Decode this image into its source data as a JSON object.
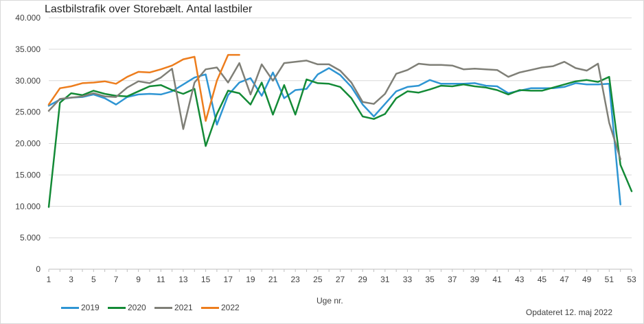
{
  "chart_data": {
    "type": "line",
    "title": "Lastbilstrafik over Storebælt. Antal lastbiler",
    "xlabel": "Uge nr.",
    "ylabel": "",
    "footnote": "Opdateret 12. maj 2022",
    "ylim": [
      0,
      40000
    ],
    "xlim": [
      1,
      53
    ],
    "yticks": [
      "0",
      "5.000",
      "10.000",
      "15.000",
      "20.000",
      "25.000",
      "30.000",
      "35.000",
      "40.000"
    ],
    "ytick_values": [
      0,
      5000,
      10000,
      15000,
      20000,
      25000,
      30000,
      35000,
      40000
    ],
    "xticks": [
      "1",
      "3",
      "5",
      "7",
      "9",
      "11",
      "13",
      "15",
      "17",
      "19",
      "21",
      "23",
      "25",
      "27",
      "29",
      "31",
      "33",
      "35",
      "37",
      "39",
      "41",
      "43",
      "45",
      "47",
      "49",
      "51",
      "53"
    ],
    "xtick_values": [
      1,
      3,
      5,
      7,
      9,
      11,
      13,
      15,
      17,
      19,
      21,
      23,
      25,
      27,
      29,
      31,
      33,
      35,
      37,
      39,
      41,
      43,
      45,
      47,
      49,
      51,
      53
    ],
    "grid": true,
    "legend": "bottom-left",
    "series": [
      {
        "name": "2019",
        "color": "#2e95d3",
        "x": [
          1,
          2,
          3,
          4,
          5,
          6,
          7,
          8,
          9,
          10,
          11,
          12,
          13,
          14,
          15,
          16,
          17,
          18,
          19,
          20,
          21,
          22,
          23,
          24,
          25,
          26,
          27,
          28,
          29,
          30,
          31,
          32,
          33,
          34,
          35,
          36,
          37,
          38,
          39,
          40,
          41,
          42,
          43,
          44,
          45,
          46,
          47,
          48,
          49,
          50,
          51,
          52
        ],
        "y": [
          26000,
          27000,
          27300,
          27400,
          27800,
          27200,
          26200,
          27400,
          27800,
          27900,
          27800,
          28300,
          29400,
          30500,
          31000,
          23000,
          27700,
          29700,
          30400,
          27600,
          31300,
          27200,
          28500,
          28700,
          31000,
          32000,
          30900,
          29000,
          26200,
          24300,
          26300,
          28300,
          29000,
          29200,
          30100,
          29500,
          29500,
          29500,
          29600,
          29200,
          29100,
          28000,
          28400,
          28800,
          28800,
          28800,
          29000,
          29600,
          29400,
          29400,
          29500,
          10300
        ]
      },
      {
        "name": "2020",
        "color": "#138a36",
        "x": [
          1,
          2,
          3,
          4,
          5,
          6,
          7,
          8,
          9,
          10,
          11,
          12,
          13,
          14,
          15,
          16,
          17,
          18,
          19,
          20,
          21,
          22,
          23,
          24,
          25,
          26,
          27,
          28,
          29,
          30,
          31,
          32,
          33,
          34,
          35,
          36,
          37,
          38,
          39,
          40,
          41,
          42,
          43,
          44,
          45,
          46,
          47,
          48,
          49,
          50,
          51,
          52,
          53
        ],
        "y": [
          9900,
          26500,
          28000,
          27700,
          28400,
          27900,
          27600,
          27500,
          28300,
          29100,
          29300,
          28500,
          27900,
          28700,
          19600,
          24700,
          28400,
          28000,
          26200,
          29700,
          24600,
          29300,
          24600,
          30200,
          29600,
          29500,
          29000,
          27200,
          24300,
          23900,
          24700,
          27200,
          28300,
          28100,
          28600,
          29200,
          29100,
          29400,
          29100,
          28900,
          28500,
          27800,
          28500,
          28400,
          28400,
          28900,
          29400,
          29900,
          30100,
          29800,
          30600,
          16600,
          12400
        ]
      },
      {
        "name": "2021",
        "color": "#7f7f77",
        "x": [
          1,
          2,
          3,
          4,
          5,
          6,
          7,
          8,
          9,
          10,
          11,
          12,
          13,
          14,
          15,
          16,
          17,
          18,
          19,
          20,
          21,
          22,
          23,
          24,
          25,
          26,
          27,
          28,
          29,
          30,
          31,
          32,
          33,
          34,
          35,
          36,
          37,
          38,
          39,
          40,
          41,
          42,
          43,
          44,
          45,
          46,
          47,
          48,
          49,
          50,
          51,
          52
        ],
        "y": [
          25200,
          27100,
          27300,
          27500,
          28000,
          27500,
          27400,
          28900,
          29900,
          29600,
          30500,
          31900,
          22300,
          29700,
          31800,
          32100,
          29700,
          32800,
          27800,
          32600,
          30000,
          32800,
          33000,
          33200,
          32600,
          32600,
          31600,
          29700,
          26600,
          26300,
          27900,
          31100,
          31700,
          32700,
          32500,
          32500,
          32400,
          31800,
          31900,
          31800,
          31700,
          30600,
          31300,
          31700,
          32100,
          32300,
          33000,
          32000,
          31600,
          32700,
          23300,
          17500
        ]
      },
      {
        "name": "2022",
        "color": "#ed7d1d",
        "x": [
          1,
          2,
          3,
          4,
          5,
          6,
          7,
          8,
          9,
          10,
          11,
          12,
          13,
          14,
          15,
          16,
          17,
          18
        ],
        "y": [
          26200,
          28800,
          29100,
          29600,
          29700,
          29900,
          29500,
          30600,
          31400,
          31300,
          31800,
          32400,
          33400,
          33800,
          23600,
          30000,
          34100,
          34100
        ]
      }
    ]
  }
}
